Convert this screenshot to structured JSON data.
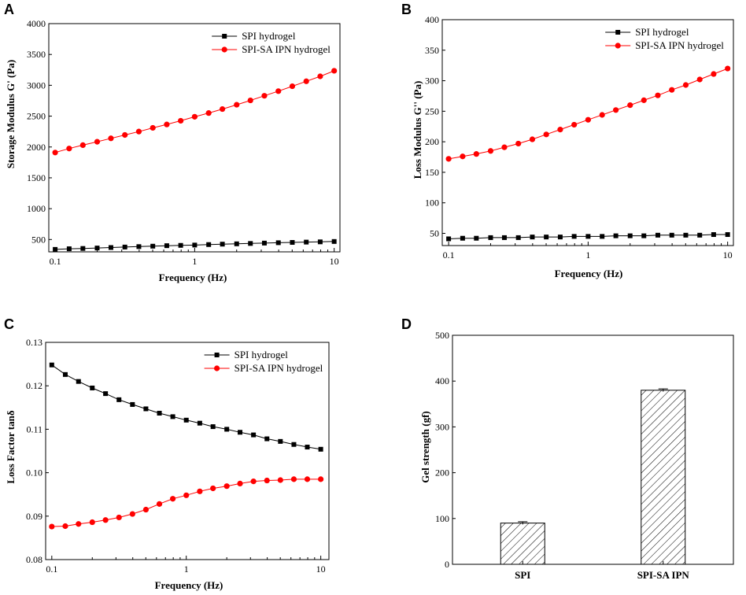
{
  "figure": {
    "colors": {
      "spi": "#000000",
      "ipn": "#ff0000",
      "axis": "#000000"
    }
  },
  "chart_data": [
    {
      "id": "A",
      "panel_label": "A",
      "type": "line",
      "x_scale": "log",
      "xlabel": "Frequency (Hz)",
      "ylabel": "Storage Modulus G' (Pa)",
      "xlim": [
        0.09,
        11
      ],
      "ylim": [
        300,
        4000
      ],
      "x_ticks": [
        0.1,
        1,
        10
      ],
      "x_tick_labels": [
        "0.1",
        "1",
        "10"
      ],
      "y_ticks": [
        500,
        1000,
        1500,
        2000,
        2500,
        3000,
        3500,
        4000
      ],
      "y_tick_labels": [
        "500",
        "1000",
        "1500",
        "2000",
        "2500",
        "3000",
        "3500",
        "4000"
      ],
      "legend": [
        "SPI hydrogel",
        "SPI-SA IPN hydrogel"
      ],
      "legend_position": "top-right",
      "x": [
        0.1,
        0.126,
        0.158,
        0.2,
        0.251,
        0.316,
        0.398,
        0.501,
        0.631,
        0.794,
        1,
        1.26,
        1.58,
        2,
        2.51,
        3.16,
        3.98,
        5.01,
        6.31,
        7.94,
        10
      ],
      "series": [
        {
          "name": "SPI hydrogel",
          "marker": "square",
          "color": "#000000",
          "values": [
            340,
            350,
            355,
            362,
            370,
            378,
            385,
            392,
            400,
            405,
            410,
            418,
            425,
            430,
            436,
            442,
            448,
            453,
            458,
            462,
            468
          ]
        },
        {
          "name": "SPI-SA IPN hydrogel",
          "marker": "circle",
          "color": "#ff0000",
          "values": [
            1910,
            1975,
            2030,
            2085,
            2140,
            2195,
            2250,
            2310,
            2365,
            2425,
            2490,
            2550,
            2615,
            2685,
            2755,
            2830,
            2905,
            2985,
            3065,
            3145,
            3235
          ]
        }
      ]
    },
    {
      "id": "B",
      "panel_label": "B",
      "type": "line",
      "x_scale": "log",
      "xlabel": "Frequency (Hz)",
      "ylabel": "Loss Modulus G'' (Pa)",
      "xlim": [
        0.09,
        11
      ],
      "ylim": [
        30,
        400
      ],
      "x_ticks": [
        0.1,
        1,
        10
      ],
      "x_tick_labels": [
        "0.1",
        "1",
        "10"
      ],
      "y_ticks": [
        50,
        100,
        150,
        200,
        250,
        300,
        350,
        400
      ],
      "y_tick_labels": [
        "50",
        "100",
        "150",
        "200",
        "250",
        "300",
        "350",
        "400"
      ],
      "legend": [
        "SPI hydrogel",
        "SPI-SA IPN hydrogel"
      ],
      "legend_position": "top-right",
      "x": [
        0.1,
        0.126,
        0.158,
        0.2,
        0.251,
        0.316,
        0.398,
        0.501,
        0.631,
        0.794,
        1,
        1.26,
        1.58,
        2,
        2.51,
        3.16,
        3.98,
        5.01,
        6.31,
        7.94,
        10
      ],
      "series": [
        {
          "name": "SPI hydrogel",
          "marker": "square",
          "color": "#000000",
          "values": [
            41,
            42,
            42,
            43,
            43,
            43,
            44,
            44,
            44,
            45,
            45,
            45,
            46,
            46,
            46,
            47,
            47,
            47,
            47,
            48,
            48
          ]
        },
        {
          "name": "SPI-SA IPN hydrogel",
          "marker": "circle",
          "color": "#ff0000",
          "values": [
            172,
            176,
            180,
            185,
            191,
            197,
            204,
            212,
            220,
            228,
            236,
            244,
            252,
            260,
            268,
            276,
            285,
            293,
            302,
            311,
            320
          ]
        }
      ]
    },
    {
      "id": "C",
      "panel_label": "C",
      "type": "line",
      "x_scale": "log",
      "xlabel": "Frequency (Hz)",
      "ylabel": "Loss Factor tanδ",
      "xlim": [
        0.09,
        11.5
      ],
      "ylim": [
        0.08,
        0.13
      ],
      "x_ticks": [
        0.1,
        1,
        10
      ],
      "x_tick_labels": [
        "0.1",
        "1",
        "10"
      ],
      "y_ticks": [
        0.08,
        0.09,
        0.1,
        0.11,
        0.12,
        0.13
      ],
      "y_tick_labels": [
        "0.08",
        "0.09",
        "0.10",
        "0.11",
        "0.12",
        "0.13"
      ],
      "legend": [
        "SPI hydrogel",
        "SPI-SA IPN hydrogel"
      ],
      "legend_position": "top-right",
      "x": [
        0.1,
        0.126,
        0.158,
        0.2,
        0.251,
        0.316,
        0.398,
        0.501,
        0.631,
        0.794,
        1,
        1.26,
        1.58,
        2,
        2.51,
        3.16,
        3.98,
        5.01,
        6.31,
        7.94,
        10
      ],
      "series": [
        {
          "name": "SPI hydrogel",
          "marker": "square",
          "color": "#000000",
          "values": [
            0.1248,
            0.1226,
            0.121,
            0.1195,
            0.1182,
            0.1168,
            0.1157,
            0.1147,
            0.1137,
            0.1129,
            0.1121,
            0.1114,
            0.1106,
            0.11,
            0.1093,
            0.1087,
            0.1078,
            0.1072,
            0.1065,
            0.1059,
            0.1054
          ]
        },
        {
          "name": "SPI-SA IPN hydrogel",
          "marker": "circle",
          "color": "#ff0000",
          "values": [
            0.0876,
            0.0877,
            0.0882,
            0.0886,
            0.0891,
            0.0897,
            0.0905,
            0.0915,
            0.0928,
            0.094,
            0.0948,
            0.0957,
            0.0964,
            0.0969,
            0.0975,
            0.098,
            0.0982,
            0.0983,
            0.0985,
            0.0985,
            0.0985
          ]
        }
      ]
    },
    {
      "id": "D",
      "panel_label": "D",
      "type": "bar",
      "xlabel": "",
      "ylabel": "Gel strength (gf)",
      "ylim": [
        0,
        500
      ],
      "y_ticks": [
        0,
        100,
        200,
        300,
        400,
        500
      ],
      "y_tick_labels": [
        "0",
        "100",
        "200",
        "300",
        "400",
        "500"
      ],
      "categories": [
        "SPI",
        "SPI-SA IPN"
      ],
      "values": [
        90,
        380
      ],
      "errors": [
        3,
        3
      ],
      "bar_fill": "diagonal-hatch"
    }
  ]
}
